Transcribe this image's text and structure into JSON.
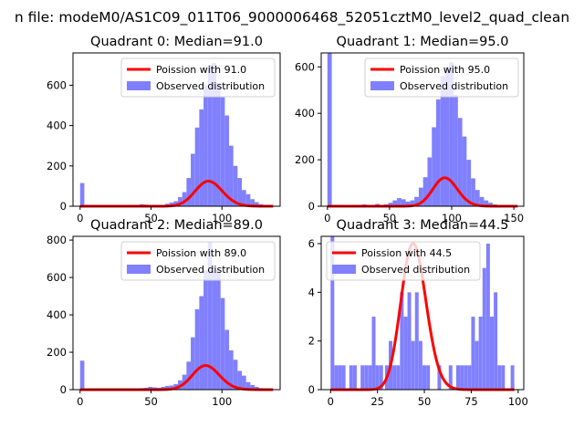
{
  "suptitle": "n file: modeM0/AS1C09_011T06_9000006468_52051cztM0_level2_quad_clean",
  "colors": {
    "histogram": "#8080ff",
    "poisson": "#ff0000",
    "axis": "#000000"
  },
  "chart_data": [
    {
      "type": "histogram",
      "title": "Quadrant 0: Median=91.0",
      "xlim": [
        -5,
        141
      ],
      "ylim": [
        0,
        760
      ],
      "xticks": [
        0,
        50,
        100
      ],
      "yticks": [
        0,
        200,
        400,
        600
      ],
      "bin_width": 3,
      "bars": [
        [
          0,
          115
        ],
        [
          21,
          3
        ],
        [
          42,
          10
        ],
        [
          45,
          8
        ],
        [
          48,
          5
        ],
        [
          51,
          4
        ],
        [
          54,
          4
        ],
        [
          57,
          6
        ],
        [
          60,
          12
        ],
        [
          63,
          18
        ],
        [
          66,
          25
        ],
        [
          69,
          45
        ],
        [
          72,
          70
        ],
        [
          75,
          140
        ],
        [
          78,
          260
        ],
        [
          81,
          390
        ],
        [
          84,
          480
        ],
        [
          87,
          600
        ],
        [
          90,
          700
        ],
        [
          93,
          710
        ],
        [
          96,
          610
        ],
        [
          99,
          540
        ],
        [
          102,
          450
        ],
        [
          105,
          300
        ],
        [
          108,
          200
        ],
        [
          111,
          140
        ],
        [
          114,
          80
        ],
        [
          117,
          60
        ],
        [
          120,
          35
        ],
        [
          123,
          20
        ],
        [
          126,
          10
        ],
        [
          129,
          5
        ],
        [
          132,
          3
        ]
      ],
      "poisson_mu": 91.0,
      "poisson_scale": 2970,
      "legend": {
        "placement": "upper right",
        "entries": [
          "Poission with 91.0",
          "Observed distribution"
        ]
      }
    },
    {
      "type": "histogram",
      "title": "Quadrant 1: Median=95.0",
      "xlim": [
        -5,
        158
      ],
      "ylim": [
        0,
        660
      ],
      "xticks": [
        0,
        50,
        100,
        150
      ],
      "yticks": [
        0,
        200,
        400,
        600
      ],
      "bin_width": 3.5,
      "bars": [
        [
          0,
          660
        ],
        [
          17.5,
          3
        ],
        [
          24.5,
          3
        ],
        [
          28,
          8
        ],
        [
          31.5,
          4
        ],
        [
          35,
          5
        ],
        [
          38.5,
          10
        ],
        [
          42,
          5
        ],
        [
          45.5,
          8
        ],
        [
          49,
          15
        ],
        [
          52.5,
          25
        ],
        [
          56,
          35
        ],
        [
          59.5,
          30
        ],
        [
          63,
          20
        ],
        [
          66.5,
          25
        ],
        [
          70,
          40
        ],
        [
          73.5,
          80
        ],
        [
          77,
          125
        ],
        [
          80.5,
          210
        ],
        [
          84,
          340
        ],
        [
          87.5,
          460
        ],
        [
          91,
          560
        ],
        [
          94.5,
          600
        ],
        [
          98,
          620
        ],
        [
          101.5,
          480
        ],
        [
          105,
          380
        ],
        [
          108.5,
          300
        ],
        [
          112,
          200
        ],
        [
          115.5,
          120
        ],
        [
          119,
          70
        ],
        [
          122.5,
          40
        ],
        [
          126,
          25
        ],
        [
          129.5,
          15
        ],
        [
          133,
          8
        ],
        [
          136.5,
          5
        ],
        [
          140,
          3
        ]
      ],
      "poisson_mu": 95.0,
      "poisson_scale": 2990,
      "legend": {
        "placement": "upper right",
        "entries": [
          "Poission with 95.0",
          "Observed distribution"
        ]
      }
    },
    {
      "type": "histogram",
      "title": "Quadrant 2: Median=89.0",
      "xlim": [
        -5,
        141
      ],
      "ylim": [
        0,
        820
      ],
      "xticks": [
        0,
        50,
        100
      ],
      "yticks": [
        0,
        200,
        400,
        600,
        800
      ],
      "bin_width": 3,
      "bars": [
        [
          0,
          155
        ],
        [
          21,
          3
        ],
        [
          33,
          5
        ],
        [
          42,
          8
        ],
        [
          45,
          10
        ],
        [
          48,
          15
        ],
        [
          51,
          12
        ],
        [
          54,
          10
        ],
        [
          57,
          15
        ],
        [
          60,
          20
        ],
        [
          63,
          22
        ],
        [
          66,
          30
        ],
        [
          69,
          50
        ],
        [
          72,
          80
        ],
        [
          75,
          150
        ],
        [
          78,
          280
        ],
        [
          81,
          430
        ],
        [
          84,
          500
        ],
        [
          87,
          640
        ],
        [
          90,
          790
        ],
        [
          93,
          630
        ],
        [
          96,
          640
        ],
        [
          99,
          490
        ],
        [
          102,
          320
        ],
        [
          105,
          210
        ],
        [
          108,
          160
        ],
        [
          111,
          100
        ],
        [
          114,
          75
        ],
        [
          117,
          40
        ],
        [
          120,
          25
        ],
        [
          123,
          15
        ],
        [
          126,
          8
        ],
        [
          129,
          4
        ],
        [
          132,
          3
        ]
      ],
      "poisson_mu": 89.0,
      "poisson_scale": 3050,
      "legend": {
        "placement": "upper right",
        "entries": [
          "Poission with 89.0",
          "Observed distribution"
        ]
      }
    },
    {
      "type": "histogram",
      "title": "Quadrant 3: Median=44.5",
      "xlim": [
        -5,
        103
      ],
      "ylim": [
        0,
        6.3
      ],
      "xticks": [
        0,
        25,
        50,
        75,
        100
      ],
      "yticks": [
        0,
        2,
        4,
        6
      ],
      "bin_width": 1.95,
      "bars": [
        [
          0,
          6.3
        ],
        [
          2,
          1
        ],
        [
          4,
          1
        ],
        [
          6,
          1
        ],
        [
          10,
          1
        ],
        [
          12,
          1
        ],
        [
          16,
          1
        ],
        [
          18,
          1
        ],
        [
          20,
          1
        ],
        [
          22,
          3
        ],
        [
          24,
          1
        ],
        [
          26,
          1
        ],
        [
          29,
          1
        ],
        [
          31,
          2
        ],
        [
          33,
          1
        ],
        [
          35,
          1
        ],
        [
          37,
          4
        ],
        [
          39,
          3
        ],
        [
          41,
          4
        ],
        [
          43,
          2
        ],
        [
          45,
          4
        ],
        [
          47,
          2
        ],
        [
          49,
          1
        ],
        [
          51,
          1
        ],
        [
          57,
          1
        ],
        [
          63,
          1
        ],
        [
          67,
          1
        ],
        [
          69,
          1
        ],
        [
          71,
          1
        ],
        [
          73,
          1
        ],
        [
          75,
          3
        ],
        [
          77,
          2
        ],
        [
          79,
          3
        ],
        [
          81,
          5
        ],
        [
          83,
          6
        ],
        [
          85,
          3
        ],
        [
          87,
          4
        ],
        [
          89,
          1
        ],
        [
          91,
          1
        ],
        [
          96,
          1
        ]
      ],
      "poisson_mu": 44.5,
      "poisson_scale": 100.4,
      "legend": {
        "placement": "upper left",
        "entries": [
          "Poission with 44.5",
          "Observed distribution"
        ]
      }
    }
  ]
}
